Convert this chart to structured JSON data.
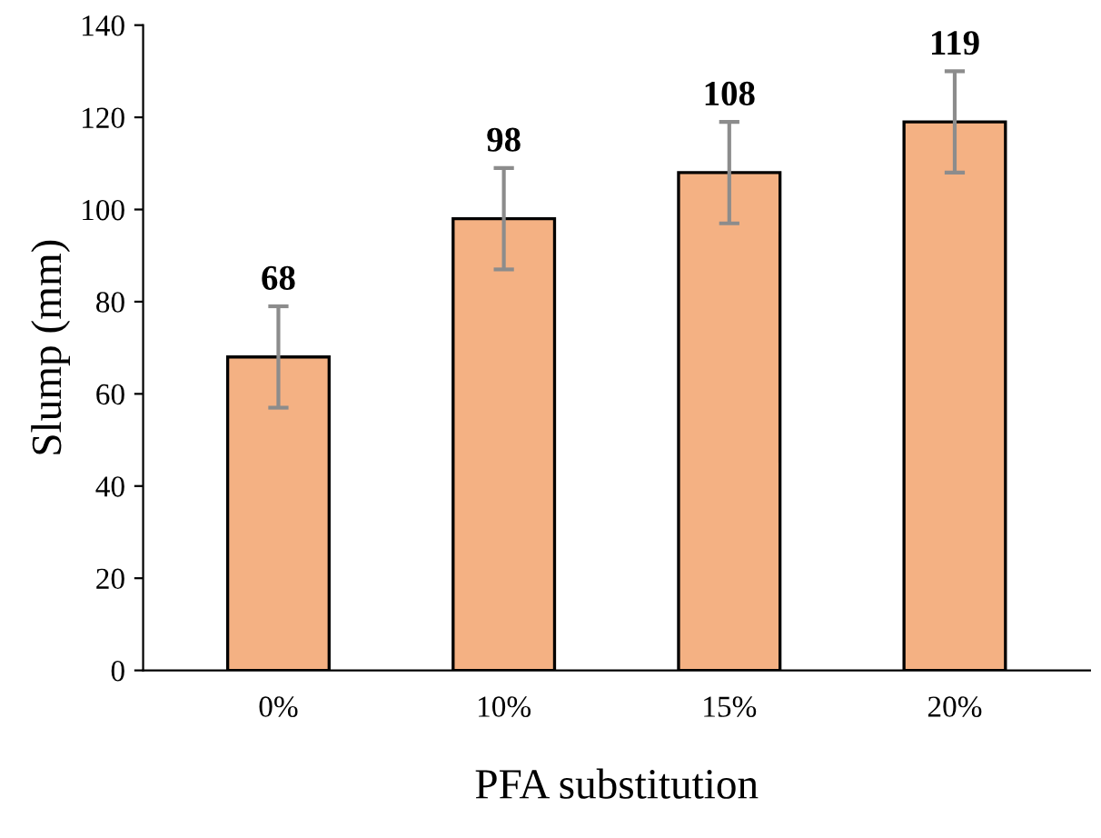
{
  "chart_data": {
    "type": "bar",
    "xlabel": "PFA substitution",
    "ylabel": "Slump (mm)",
    "categories": [
      "0%",
      "10%",
      "15%",
      "20%"
    ],
    "values": [
      68,
      98,
      108,
      119
    ],
    "errors": [
      11,
      11,
      11,
      11
    ],
    "color": "#f4b183",
    "ylim": [
      0,
      140
    ],
    "yticks": [
      0,
      20,
      40,
      60,
      80,
      100,
      120,
      140
    ],
    "data_labels": true,
    "grid": false,
    "legend": false
  }
}
